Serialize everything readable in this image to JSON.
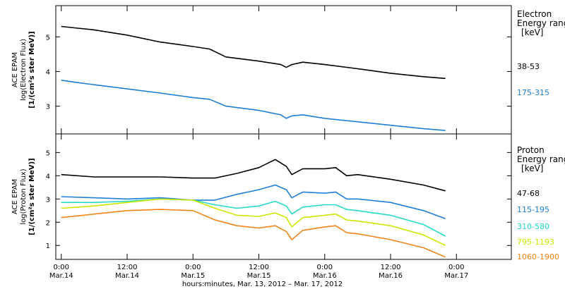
{
  "chart_data": [
    {
      "type": "line",
      "panel": "electron",
      "ylabel_lines": [
        "ACE EPAM",
        "log(Electron Flux)",
        "[1/(cm²s ster MeV)]"
      ],
      "yticks": [
        3,
        4,
        5
      ],
      "ylim": [
        2.2,
        5.9
      ],
      "legend_title": [
        "Electron",
        "Energy range",
        "[keV]"
      ],
      "series": [
        {
          "name": "38-53",
          "color": "#000000",
          "points": [
            [
              0,
              5.3
            ],
            [
              3,
              5.25
            ],
            [
              6,
              5.2
            ],
            [
              12,
              5.05
            ],
            [
              18,
              4.85
            ],
            [
              24,
              4.72
            ],
            [
              27,
              4.65
            ],
            [
              30,
              4.42
            ],
            [
              36,
              4.3
            ],
            [
              40,
              4.2
            ],
            [
              41,
              4.12
            ],
            [
              42,
              4.2
            ],
            [
              44,
              4.27
            ],
            [
              48,
              4.2
            ],
            [
              54,
              4.08
            ],
            [
              60,
              3.95
            ],
            [
              66,
              3.85
            ],
            [
              70,
              3.8
            ]
          ]
        },
        {
          "name": "175-315",
          "color": "#1e7fd8",
          "points": [
            [
              0,
              3.75
            ],
            [
              3,
              3.68
            ],
            [
              6,
              3.62
            ],
            [
              12,
              3.5
            ],
            [
              18,
              3.38
            ],
            [
              24,
              3.25
            ],
            [
              27,
              3.2
            ],
            [
              30,
              3.0
            ],
            [
              36,
              2.88
            ],
            [
              40,
              2.75
            ],
            [
              41,
              2.65
            ],
            [
              42,
              2.72
            ],
            [
              44,
              2.75
            ],
            [
              48,
              2.65
            ],
            [
              54,
              2.55
            ],
            [
              60,
              2.45
            ],
            [
              66,
              2.35
            ],
            [
              70,
              2.3
            ]
          ]
        }
      ]
    },
    {
      "type": "line",
      "panel": "proton",
      "ylabel_lines": [
        "ACE EPAM",
        "log(Proton Flux)",
        "[1/(cm²s ster MeV)]"
      ],
      "yticks": [
        1,
        2,
        3,
        4,
        5
      ],
      "ylim": [
        0.4,
        5.8
      ],
      "legend_title": [
        "Proton",
        "Energy range",
        "[keV]"
      ],
      "series": [
        {
          "name": "47-68",
          "color": "#000000",
          "points": [
            [
              0,
              4.05
            ],
            [
              6,
              3.95
            ],
            [
              12,
              3.95
            ],
            [
              18,
              3.95
            ],
            [
              24,
              3.9
            ],
            [
              28,
              3.9
            ],
            [
              32,
              4.1
            ],
            [
              36,
              4.35
            ],
            [
              39,
              4.7
            ],
            [
              41,
              4.4
            ],
            [
              42,
              4.05
            ],
            [
              44,
              4.3
            ],
            [
              48,
              4.3
            ],
            [
              50,
              4.35
            ],
            [
              52,
              4.0
            ],
            [
              54,
              4.05
            ],
            [
              60,
              3.85
            ],
            [
              66,
              3.6
            ],
            [
              70,
              3.35
            ]
          ]
        },
        {
          "name": "115-195",
          "color": "#1e7fd8",
          "points": [
            [
              0,
              3.1
            ],
            [
              6,
              3.05
            ],
            [
              12,
              3.0
            ],
            [
              18,
              3.05
            ],
            [
              24,
              2.95
            ],
            [
              28,
              2.95
            ],
            [
              32,
              3.2
            ],
            [
              36,
              3.4
            ],
            [
              39,
              3.6
            ],
            [
              41,
              3.4
            ],
            [
              42,
              3.05
            ],
            [
              44,
              3.3
            ],
            [
              48,
              3.25
            ],
            [
              50,
              3.3
            ],
            [
              52,
              3.0
            ],
            [
              54,
              3.0
            ],
            [
              60,
              2.85
            ],
            [
              66,
              2.5
            ],
            [
              70,
              2.15
            ]
          ]
        },
        {
          "name": "310-580",
          "color": "#26d9c8",
          "points": [
            [
              0,
              2.85
            ],
            [
              6,
              2.85
            ],
            [
              12,
              2.9
            ],
            [
              18,
              3.0
            ],
            [
              24,
              2.95
            ],
            [
              28,
              2.75
            ],
            [
              32,
              2.6
            ],
            [
              36,
              2.7
            ],
            [
              39,
              2.9
            ],
            [
              41,
              2.7
            ],
            [
              42,
              2.35
            ],
            [
              44,
              2.65
            ],
            [
              48,
              2.75
            ],
            [
              50,
              2.75
            ],
            [
              52,
              2.55
            ],
            [
              54,
              2.5
            ],
            [
              60,
              2.3
            ],
            [
              66,
              1.9
            ],
            [
              70,
              1.4
            ]
          ]
        },
        {
          "name": "795-1193",
          "color": "#cfe600",
          "points": [
            [
              0,
              2.6
            ],
            [
              6,
              2.7
            ],
            [
              12,
              2.85
            ],
            [
              18,
              3.0
            ],
            [
              24,
              2.95
            ],
            [
              28,
              2.6
            ],
            [
              32,
              2.3
            ],
            [
              36,
              2.25
            ],
            [
              39,
              2.4
            ],
            [
              41,
              2.2
            ],
            [
              42,
              1.8
            ],
            [
              44,
              2.2
            ],
            [
              48,
              2.3
            ],
            [
              50,
              2.35
            ],
            [
              52,
              2.1
            ],
            [
              54,
              2.05
            ],
            [
              60,
              1.85
            ],
            [
              66,
              1.45
            ],
            [
              70,
              1.0
            ]
          ]
        },
        {
          "name": "1060-1900",
          "color": "#f08418",
          "points": [
            [
              0,
              2.2
            ],
            [
              6,
              2.35
            ],
            [
              12,
              2.5
            ],
            [
              18,
              2.55
            ],
            [
              24,
              2.5
            ],
            [
              28,
              2.1
            ],
            [
              32,
              1.85
            ],
            [
              36,
              1.75
            ],
            [
              39,
              1.85
            ],
            [
              41,
              1.6
            ],
            [
              42,
              1.25
            ],
            [
              44,
              1.65
            ],
            [
              48,
              1.8
            ],
            [
              50,
              1.85
            ],
            [
              52,
              1.55
            ],
            [
              54,
              1.5
            ],
            [
              60,
              1.25
            ],
            [
              66,
              0.9
            ],
            [
              70,
              0.5
            ]
          ]
        }
      ]
    }
  ],
  "x_axis": {
    "xlim": [
      -1,
      82
    ],
    "ticks": [
      {
        "hours": 0,
        "time": "0:00",
        "date": "Mar.14"
      },
      {
        "hours": 12,
        "time": "12:00",
        "date": "Mar.14"
      },
      {
        "hours": 24,
        "time": "0:00",
        "date": "Mar.15"
      },
      {
        "hours": 36,
        "time": "12:00",
        "date": "Mar.15"
      },
      {
        "hours": 48,
        "time": "0:00",
        "date": "Mar.16"
      },
      {
        "hours": 60,
        "time": "12:00",
        "date": "Mar.16"
      },
      {
        "hours": 72,
        "time": "0:00",
        "date": "Mar.17"
      }
    ],
    "label": "hours:minutes, Mar. 13, 2012 – Mar. 17, 2012"
  }
}
